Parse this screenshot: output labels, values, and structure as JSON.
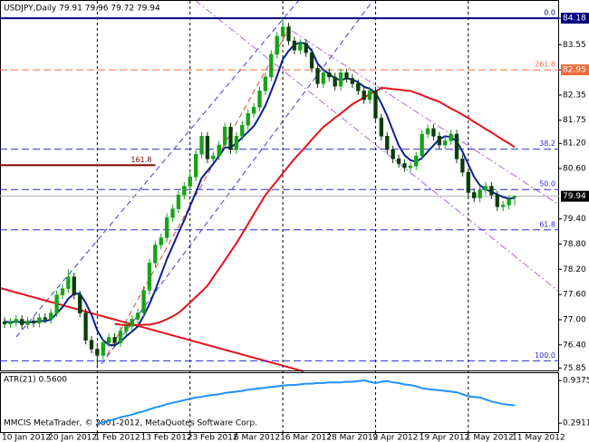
{
  "chart_data": [
    {
      "type": "candlestick",
      "title": "USDJPY,Daily  79.91 79.96 79.72 79.94",
      "categories": [
        "10 Jan 2012",
        null,
        null,
        null,
        null,
        null,
        null,
        null,
        "20 Jan 2012",
        null,
        null,
        null,
        null,
        null,
        null,
        null,
        "1 Feb 2012",
        null,
        null,
        null,
        null,
        null,
        null,
        null,
        "13 Feb 2012",
        null,
        null,
        null,
        null,
        null,
        null,
        null,
        "23 Feb 2012",
        null,
        null,
        null,
        null,
        null,
        null,
        null,
        "6 Mar 2012",
        null,
        null,
        null,
        null,
        null,
        null,
        null,
        "16 Mar 2012",
        null,
        null,
        null,
        null,
        null,
        null,
        null,
        "28 Mar 2012",
        null,
        null,
        null,
        null,
        null,
        null,
        null,
        "9 Apr 2012",
        null,
        null,
        null,
        null,
        null,
        null,
        null,
        "19 Apr 2012",
        null,
        null,
        null,
        null,
        null,
        null,
        null,
        "1 May 2012",
        null,
        null,
        null,
        null,
        null,
        null,
        null,
        "11 May 2012"
      ],
      "open": [
        76.95,
        76.9,
        76.94,
        77.01,
        76.88,
        76.97,
        76.92,
        77.05,
        77.01,
        77.16,
        77.59,
        77.74,
        78.02,
        77.59,
        77.16,
        76.51,
        76.3,
        76.15,
        76.45,
        76.58,
        76.45,
        76.73,
        76.84,
        77.01,
        77.16,
        77.7,
        78.35,
        78.78,
        78.95,
        79.43,
        79.64,
        79.97,
        80.18,
        80.4,
        80.94,
        81.37,
        80.83,
        80.9,
        81.16,
        81.59,
        81.05,
        81.37,
        81.63,
        81.91,
        82.06,
        82.45,
        82.78,
        83.32,
        83.75,
        83.97,
        83.64,
        83.42,
        83.58,
        83.36,
        82.99,
        82.62,
        82.88,
        82.78,
        82.56,
        82.88,
        82.75,
        82.62,
        82.45,
        82.24,
        82.45,
        81.8,
        81.37,
        81.05,
        80.83,
        80.72,
        80.62,
        80.66,
        80.9,
        81.42,
        81.55,
        81.37,
        81.16,
        81.26,
        81.42,
        80.83,
        80.51,
        80.03,
        79.9,
        80.08,
        80.18,
        79.97,
        79.69,
        79.73,
        79.91
      ],
      "high": [
        77.05,
        77.04,
        77.11,
        77.11,
        77.07,
        77.07,
        77.15,
        77.15,
        77.26,
        77.69,
        77.84,
        78.2,
        78.12,
        77.69,
        77.26,
        76.61,
        76.4,
        76.55,
        76.68,
        76.68,
        76.83,
        76.94,
        77.11,
        77.26,
        77.8,
        78.45,
        78.88,
        79.05,
        79.53,
        79.74,
        80.07,
        80.28,
        80.5,
        81.04,
        81.47,
        81.47,
        81.0,
        81.26,
        81.69,
        81.69,
        81.47,
        81.73,
        82.01,
        82.16,
        82.55,
        82.88,
        83.42,
        83.85,
        84.18,
        84.07,
        83.74,
        83.68,
        83.68,
        83.46,
        83.09,
        82.98,
        82.98,
        82.88,
        82.98,
        82.98,
        82.85,
        82.72,
        82.55,
        82.55,
        82.55,
        81.9,
        81.47,
        81.15,
        80.93,
        80.82,
        80.76,
        81.0,
        81.52,
        81.65,
        81.65,
        81.47,
        81.36,
        81.52,
        81.52,
        80.93,
        80.61,
        80.13,
        80.18,
        80.28,
        80.28,
        80.07,
        79.83,
        79.96,
        79.96
      ],
      "low": [
        76.8,
        76.8,
        76.84,
        76.78,
        76.78,
        76.82,
        76.82,
        76.91,
        76.91,
        77.06,
        77.49,
        77.64,
        77.49,
        77.06,
        76.41,
        76.2,
        75.85,
        76.05,
        76.35,
        76.35,
        76.35,
        76.63,
        76.74,
        76.91,
        77.06,
        77.6,
        78.25,
        78.68,
        78.85,
        79.33,
        79.54,
        79.87,
        80.08,
        80.3,
        80.84,
        80.73,
        80.73,
        80.8,
        81.06,
        80.95,
        80.95,
        81.27,
        81.53,
        81.81,
        81.96,
        82.35,
        82.68,
        83.22,
        83.65,
        83.54,
        83.32,
        83.32,
        83.26,
        82.89,
        82.52,
        82.52,
        82.68,
        82.46,
        82.46,
        82.65,
        82.52,
        82.35,
        82.14,
        82.14,
        81.7,
        81.27,
        80.95,
        80.73,
        80.62,
        80.52,
        80.52,
        80.56,
        80.8,
        81.32,
        81.27,
        81.06,
        81.06,
        81.16,
        80.73,
        80.41,
        79.93,
        79.8,
        79.8,
        79.98,
        79.87,
        79.59,
        79.59,
        79.63,
        79.72
      ],
      "close": [
        76.9,
        76.94,
        77.01,
        76.88,
        76.97,
        76.92,
        77.05,
        77.01,
        77.16,
        77.59,
        77.74,
        78.02,
        77.59,
        77.16,
        76.51,
        76.3,
        76.15,
        76.45,
        76.58,
        76.45,
        76.73,
        76.84,
        77.01,
        77.16,
        77.7,
        78.35,
        78.78,
        78.95,
        79.43,
        79.64,
        79.97,
        80.18,
        80.4,
        80.94,
        81.37,
        80.83,
        80.9,
        81.16,
        81.59,
        81.05,
        81.37,
        81.63,
        81.91,
        82.06,
        82.45,
        82.78,
        83.32,
        83.75,
        83.97,
        83.64,
        83.42,
        83.58,
        83.36,
        82.99,
        82.62,
        82.88,
        82.78,
        82.56,
        82.88,
        82.75,
        82.62,
        82.45,
        82.24,
        82.45,
        81.8,
        81.37,
        81.05,
        80.83,
        80.72,
        80.62,
        80.66,
        80.9,
        81.42,
        81.55,
        81.37,
        81.16,
        81.26,
        81.42,
        80.83,
        80.51,
        80.03,
        79.9,
        80.08,
        80.18,
        79.97,
        79.69,
        79.73,
        79.86,
        79.94
      ],
      "up_color": "#16a316",
      "down_color": "#0a3d0a",
      "lines": [
        {
          "color": "#0a1f8f",
          "values": [
            76.95,
            76.94,
            76.95,
            76.94,
            76.94,
            76.94,
            76.97,
            76.97,
            77.0,
            77.15,
            77.3,
            77.5,
            77.62,
            77.62,
            77.4,
            77.12,
            76.74,
            76.51,
            76.4,
            76.39,
            76.47,
            76.61,
            76.72,
            76.84,
            77.09,
            77.37,
            77.7,
            78.07,
            78.44,
            78.75,
            79.07,
            79.37,
            79.7,
            80.03,
            80.37,
            80.54,
            80.71,
            80.9,
            81.1,
            81.1,
            81.2,
            81.34,
            81.47,
            81.61,
            81.84,
            82.1,
            82.44,
            82.8,
            83.2,
            83.4,
            83.55,
            83.6,
            83.57,
            83.4,
            83.1,
            82.95,
            82.85,
            82.75,
            82.7,
            82.75,
            82.72,
            82.65,
            82.55,
            82.5,
            82.4,
            82.15,
            81.85,
            81.5,
            81.15,
            80.92,
            80.8,
            80.76,
            80.85,
            81.0,
            81.15,
            81.3,
            81.37,
            81.35,
            81.25,
            81.0,
            80.7,
            80.4,
            80.2,
            80.1,
            80.05,
            79.98,
            79.92,
            79.88,
            79.9
          ]
        },
        {
          "color": "#e8101a",
          "values": [
            null,
            null,
            null,
            null,
            null,
            null,
            null,
            null,
            null,
            null,
            null,
            null,
            null,
            null,
            null,
            null,
            null,
            null,
            null,
            76.9,
            76.88,
            76.87,
            76.87,
            76.87,
            76.88,
            76.88,
            76.91,
            76.95,
            77.01,
            77.08,
            77.16,
            77.28,
            77.41,
            77.54,
            77.67,
            77.81,
            78.01,
            78.21,
            78.41,
            78.62,
            78.82,
            79.05,
            79.28,
            79.51,
            79.74,
            79.97,
            80.14,
            80.31,
            80.49,
            80.66,
            80.83,
            80.98,
            81.13,
            81.29,
            81.44,
            81.59,
            81.7,
            81.81,
            81.91,
            82.02,
            82.13,
            82.21,
            82.29,
            82.37,
            82.44,
            82.52,
            82.51,
            82.49,
            82.48,
            82.46,
            82.45,
            82.4,
            82.35,
            82.29,
            82.24,
            82.19,
            82.11,
            82.03,
            81.96,
            81.88,
            81.8,
            81.71,
            81.63,
            81.54,
            81.46,
            81.37,
            81.28,
            81.2,
            81.11
          ]
        }
      ],
      "levels": [
        {
          "label": "0.0",
          "value": 84.18,
          "color": "#000080",
          "dash": "solid"
        },
        {
          "label": "261.8",
          "value": 82.95,
          "color": "#f26d3d",
          "dash": "dashed"
        },
        {
          "label": "38.2",
          "value": 81.06,
          "color": "#2a2ad0",
          "dash": "dashed"
        },
        {
          "label": "161.8",
          "value": 80.68,
          "color": "#800000",
          "dash": "solid",
          "extent": "left"
        },
        {
          "label": "50.0",
          "value": 80.1,
          "color": "#2a2ad0",
          "dash": "dashed"
        },
        {
          "label": "61.8",
          "value": 79.14,
          "color": "#2a2ad0",
          "dash": "dashed"
        },
        {
          "label": "100.0",
          "value": 76.02,
          "color": "#2a2ad0",
          "dash": "dashed"
        }
      ],
      "price_line": true,
      "ylim": [
        75.77,
        84.57
      ],
      "yticks": [
        84.18,
        83.55,
        82.95,
        82.35,
        81.75,
        {
          "value": 81.2,
          "label": "81.20"
        },
        {
          "value": 80.6,
          "label": "80.60"
        },
        {
          "value": 79.4,
          "label": "79.40"
        },
        {
          "value": 78.8,
          "label": "78.80"
        },
        {
          "value": 78.2,
          "label": "78.20"
        },
        {
          "value": 77.6,
          "label": "77.60"
        },
        {
          "value": 77,
          "label": "77.00"
        },
        {
          "value": 76.4,
          "label": "76.40"
        },
        75.85
      ],
      "grid": true
    },
    {
      "type": "line",
      "title": "ATR(21) 0.5600",
      "footer": "MMCIS MetaTrader, © 2001-2012, MetaQuotes Software Corp.",
      "color": "#1e90ff",
      "values": [
        null,
        null,
        null,
        null,
        null,
        null,
        null,
        null,
        null,
        null,
        null,
        null,
        null,
        null,
        null,
        null,
        0.28,
        0.3,
        0.33,
        0.35,
        0.38,
        0.4,
        0.42,
        0.45,
        0.47,
        0.5,
        0.53,
        0.55,
        0.58,
        0.6,
        0.62,
        0.64,
        0.66,
        0.68,
        0.69,
        0.71,
        0.72,
        0.73,
        0.75,
        0.76,
        0.77,
        0.78,
        0.8,
        0.81,
        0.82,
        0.83,
        0.84,
        0.85,
        0.86,
        0.87,
        0.87,
        0.88,
        0.89,
        0.89,
        0.9,
        0.9,
        0.91,
        0.91,
        0.91,
        0.92,
        0.92,
        0.93,
        0.94,
        0.92,
        0.9,
        0.92,
        0.93,
        0.91,
        0.9,
        0.88,
        0.87,
        0.85,
        0.82,
        0.81,
        0.8,
        0.79,
        0.78,
        0.77,
        0.76,
        0.73,
        0.7,
        0.69,
        0.68,
        0.65,
        0.62,
        0.6,
        0.58,
        0.57,
        0.56
      ],
      "ylim": [
        0.17,
        1.05
      ],
      "yticks": [
        0.9375,
        0.2911
      ]
    }
  ]
}
